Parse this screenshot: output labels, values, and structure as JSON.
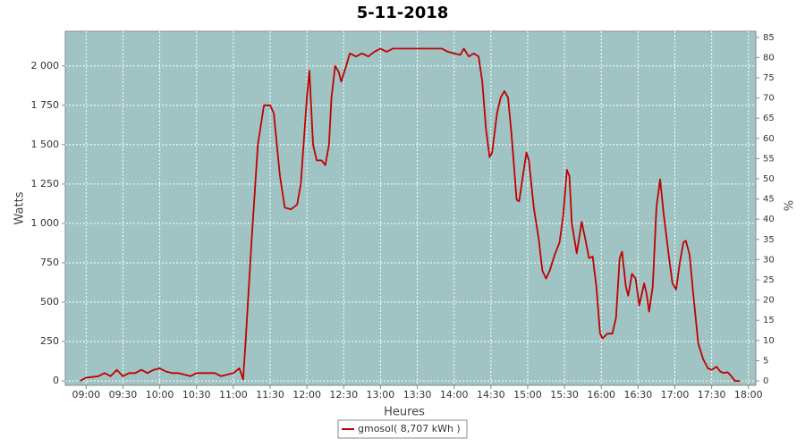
{
  "chart_data": {
    "type": "line",
    "title": "5-11-2018",
    "xlabel": "Heures",
    "ylabel": "Watts",
    "y2label": "%",
    "x": [
      "08:55",
      "09:00",
      "09:05",
      "09:10",
      "09:15",
      "09:20",
      "09:25",
      "09:30",
      "09:35",
      "09:40",
      "09:45",
      "09:50",
      "09:55",
      "10:00",
      "10:05",
      "10:10",
      "10:15",
      "10:20",
      "10:25",
      "10:30",
      "10:35",
      "10:40",
      "10:45",
      "10:50",
      "10:55",
      "11:00",
      "11:05",
      "11:08",
      "11:10",
      "11:15",
      "11:20",
      "11:25",
      "11:30",
      "11:33",
      "11:38",
      "11:42",
      "11:47",
      "11:52",
      "11:55",
      "12:00",
      "12:02",
      "12:05",
      "12:08",
      "12:12",
      "12:15",
      "12:18",
      "12:20",
      "12:23",
      "12:26",
      "12:28",
      "12:32",
      "12:35",
      "12:40",
      "12:45",
      "12:50",
      "12:55",
      "13:00",
      "13:05",
      "13:10",
      "13:15",
      "13:20",
      "13:25",
      "13:30",
      "13:35",
      "13:40",
      "13:45",
      "13:50",
      "13:55",
      "14:00",
      "14:05",
      "14:08",
      "14:12",
      "14:16",
      "14:20",
      "14:23",
      "14:26",
      "14:29",
      "14:31",
      "14:35",
      "14:38",
      "14:41",
      "14:44",
      "14:47",
      "14:51",
      "14:53",
      "14:56",
      "14:59",
      "15:01",
      "15:05",
      "15:09",
      "15:12",
      "15:15",
      "15:18",
      "15:22",
      "15:26",
      "15:29",
      "15:32",
      "15:34",
      "15:36",
      "15:40",
      "15:44",
      "15:47",
      "15:50",
      "15:53",
      "15:56",
      "15:59",
      "16:01",
      "16:05",
      "16:09",
      "16:12",
      "16:15",
      "16:17",
      "16:20",
      "16:22",
      "16:25",
      "16:28",
      "16:31",
      "16:35",
      "16:37",
      "16:39",
      "16:42",
      "16:45",
      "16:48",
      "16:51",
      "16:55",
      "16:58",
      "17:01",
      "17:04",
      "17:07",
      "17:09",
      "17:12",
      "17:15",
      "17:19",
      "17:23",
      "17:27",
      "17:30",
      "17:34",
      "17:37",
      "17:40",
      "17:43",
      "17:46",
      "17:49",
      "17:53"
    ],
    "series": [
      {
        "name": "gmosol( 8,707 kWh )",
        "color": "#c00000",
        "values": [
          0,
          20,
          25,
          30,
          50,
          30,
          70,
          30,
          50,
          50,
          70,
          50,
          70,
          80,
          60,
          50,
          50,
          40,
          30,
          50,
          50,
          50,
          50,
          30,
          40,
          50,
          80,
          10,
          250,
          900,
          1500,
          1750,
          1750,
          1700,
          1300,
          1100,
          1090,
          1120,
          1250,
          1800,
          1970,
          1500,
          1400,
          1400,
          1370,
          1500,
          1800,
          2000,
          1960,
          1900,
          2000,
          2080,
          2060,
          2080,
          2060,
          2090,
          2110,
          2090,
          2110,
          2110,
          2110,
          2110,
          2110,
          2110,
          2110,
          2110,
          2110,
          2090,
          2080,
          2070,
          2110,
          2060,
          2080,
          2060,
          1900,
          1600,
          1420,
          1450,
          1700,
          1800,
          1840,
          1800,
          1550,
          1150,
          1140,
          1300,
          1450,
          1400,
          1100,
          900,
          700,
          650,
          700,
          800,
          880,
          1050,
          1340,
          1300,
          1000,
          810,
          1010,
          900,
          780,
          790,
          600,
          300,
          270,
          300,
          300,
          400,
          780,
          820,
          600,
          540,
          680,
          650,
          480,
          620,
          550,
          440,
          600,
          1100,
          1280,
          1050,
          800,
          620,
          580,
          750,
          880,
          890,
          800,
          550,
          240,
          140,
          80,
          70,
          90,
          60,
          50,
          55,
          30,
          0,
          0
        ]
      }
    ],
    "xlim": [
      "08:43",
      "18:06"
    ],
    "xticks": [
      "09:00",
      "09:30",
      "10:00",
      "10:30",
      "11:00",
      "11:30",
      "12:00",
      "12:30",
      "13:00",
      "13:30",
      "14:00",
      "14:30",
      "15:00",
      "15:30",
      "16:00",
      "16:30",
      "17:00",
      "17:30",
      "18:00"
    ],
    "ylim": [
      -28,
      2220
    ],
    "yticks": [
      0,
      250,
      500,
      750,
      {
        "value": 1000,
        "label": "1 000"
      },
      {
        "value": 1250,
        "label": "1 250"
      },
      {
        "value": 1500,
        "label": "1 500"
      },
      {
        "value": 1750,
        "label": "1 750"
      },
      {
        "value": 2000,
        "label": "2 000"
      }
    ],
    "y2lim": [
      -1.1,
      86.5
    ],
    "y2ticks": [
      0,
      5,
      10,
      15,
      20,
      25,
      30,
      35,
      40,
      45,
      50,
      55,
      60,
      65,
      70,
      75,
      80,
      85
    ],
    "grid": true,
    "plot_background": "#a0c4c4",
    "legend": "bottom"
  }
}
